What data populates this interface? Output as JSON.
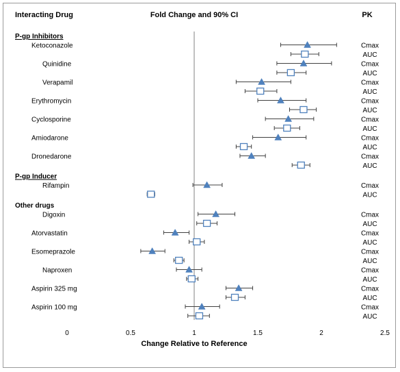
{
  "chart_data": {
    "type": "forest",
    "title": "Fold Change and 90% CI",
    "header_left": "Interacting Drug",
    "header_right": "PK",
    "xlabel": "Change Relative to Reference",
    "xlim": [
      0,
      2.5
    ],
    "xticks": [
      "0",
      "0.5",
      "1",
      "1.5",
      "2",
      "2.5"
    ],
    "reference_line": 1,
    "colors": {
      "cmax": "#4f81bd",
      "auc": "#4f81bd",
      "ci": "#404040",
      "reference": "#808080"
    },
    "markers": {
      "Cmax": "filled-triangle",
      "AUC": "open-square"
    },
    "groups": [
      {
        "name": "P-gp Inhibitors",
        "drugs": [
          {
            "name": "Ketoconazole",
            "cmax": {
              "est": 1.89,
              "lo": 1.68,
              "hi": 2.12
            },
            "auc": {
              "est": 1.87,
              "lo": 1.76,
              "hi": 1.98
            }
          },
          {
            "name": "Quinidine",
            "cmax": {
              "est": 1.86,
              "lo": 1.65,
              "hi": 2.08
            },
            "auc": {
              "est": 1.76,
              "lo": 1.65,
              "hi": 1.88
            }
          },
          {
            "name": "Verapamil",
            "cmax": {
              "est": 1.53,
              "lo": 1.33,
              "hi": 1.76
            },
            "auc": {
              "est": 1.52,
              "lo": 1.4,
              "hi": 1.65
            }
          },
          {
            "name": "Erythromycin",
            "cmax": {
              "est": 1.68,
              "lo": 1.5,
              "hi": 1.88
            },
            "auc": {
              "est": 1.86,
              "lo": 1.75,
              "hi": 1.96
            }
          },
          {
            "name": "Cyclosporine",
            "cmax": {
              "est": 1.74,
              "lo": 1.56,
              "hi": 1.94
            },
            "auc": {
              "est": 1.73,
              "lo": 1.63,
              "hi": 1.83
            }
          },
          {
            "name": "Amiodarone",
            "cmax": {
              "est": 1.66,
              "lo": 1.46,
              "hi": 1.88
            },
            "auc": {
              "est": 1.39,
              "lo": 1.33,
              "hi": 1.45
            }
          },
          {
            "name": "Dronedarone",
            "cmax": {
              "est": 1.45,
              "lo": 1.36,
              "hi": 1.56
            },
            "auc": {
              "est": 1.84,
              "lo": 1.77,
              "hi": 1.91
            }
          }
        ]
      },
      {
        "name": "P-gp Inducer",
        "drugs": [
          {
            "name": "Rifampin",
            "cmax": {
              "est": 1.1,
              "lo": 0.99,
              "hi": 1.22
            },
            "auc": {
              "est": 0.66,
              "lo": 0.63,
              "hi": 0.69
            }
          }
        ]
      },
      {
        "name": "Other drugs",
        "drugs": [
          {
            "name": "Digoxin",
            "cmax": {
              "est": 1.17,
              "lo": 1.03,
              "hi": 1.32
            },
            "auc": {
              "est": 1.1,
              "lo": 1.02,
              "hi": 1.18
            }
          },
          {
            "name": "Atorvastatin",
            "cmax": {
              "est": 0.85,
              "lo": 0.76,
              "hi": 0.96
            },
            "auc": {
              "est": 1.02,
              "lo": 0.96,
              "hi": 1.08
            }
          },
          {
            "name": "Esomeprazole",
            "cmax": {
              "est": 0.67,
              "lo": 0.58,
              "hi": 0.77
            },
            "auc": {
              "est": 0.88,
              "lo": 0.84,
              "hi": 0.92
            }
          },
          {
            "name": "Naproxen",
            "cmax": {
              "est": 0.96,
              "lo": 0.86,
              "hi": 1.06
            },
            "auc": {
              "est": 0.98,
              "lo": 0.94,
              "hi": 1.03
            }
          },
          {
            "name": "Aspirin 325 mg",
            "cmax": {
              "est": 1.35,
              "lo": 1.25,
              "hi": 1.46
            },
            "auc": {
              "est": 1.32,
              "lo": 1.25,
              "hi": 1.4
            }
          },
          {
            "name": "Aspirin 100 mg",
            "cmax": {
              "est": 1.06,
              "lo": 0.93,
              "hi": 1.2
            },
            "auc": {
              "est": 1.04,
              "lo": 0.95,
              "hi": 1.12
            }
          }
        ]
      }
    ]
  }
}
